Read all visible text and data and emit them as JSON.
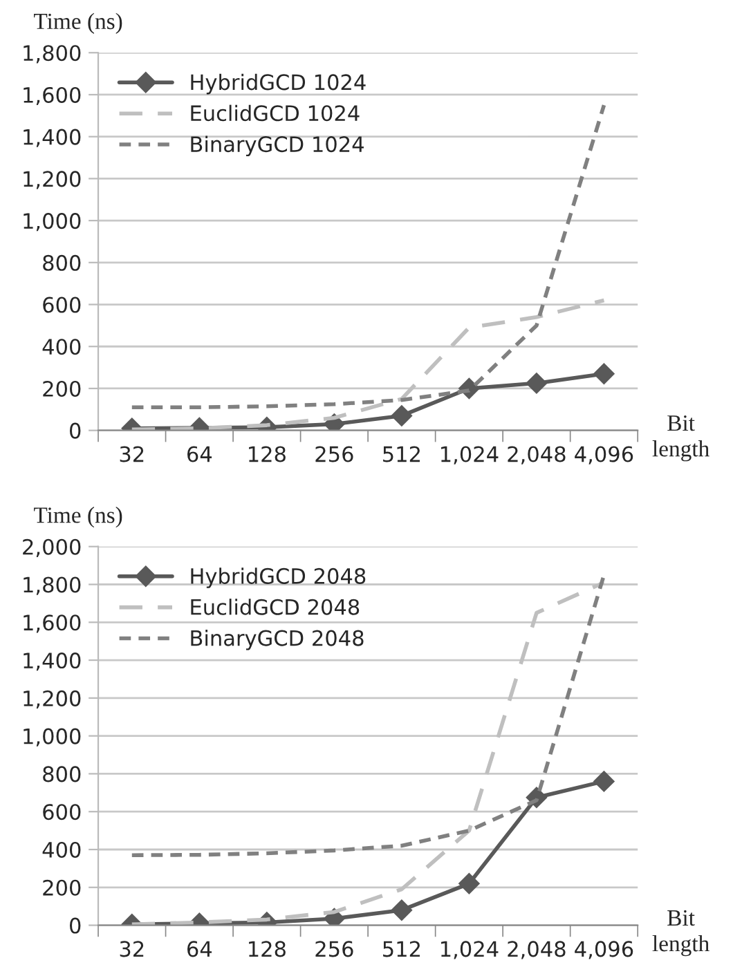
{
  "chart_data": [
    {
      "type": "line",
      "ylabel": "Time (ns)",
      "xlabel": "Bit\nlength",
      "categories": [
        "32",
        "64",
        "128",
        "256",
        "512",
        "1,024",
        "2,048",
        "4,096"
      ],
      "ylim": [
        0,
        1800
      ],
      "yticks": [
        {
          "value": 0,
          "label": "0"
        },
        {
          "value": 200,
          "label": "200"
        },
        {
          "value": 400,
          "label": "400"
        },
        {
          "value": 600,
          "label": "600"
        },
        {
          "value": 800,
          "label": "800"
        },
        {
          "value": 1000,
          "label": "1,000"
        },
        {
          "value": 1200,
          "label": "1,200"
        },
        {
          "value": 1400,
          "label": "1,400"
        },
        {
          "value": 1600,
          "label": "1,600"
        },
        {
          "value": 1800,
          "label": "1,800"
        }
      ],
      "grid": "y",
      "legend": "top left",
      "series": [
        {
          "name": "HybridGCD 1024",
          "color": "#595959",
          "marker": "diamond",
          "line_style": "solid",
          "values": [
            10,
            12,
            15,
            30,
            70,
            200,
            225,
            270
          ]
        },
        {
          "name": "EuclidGCD 1024",
          "color": "#bfbfbf",
          "line_style": "dashed",
          "values": [
            5,
            10,
            25,
            60,
            150,
            490,
            540,
            620
          ]
        },
        {
          "name": "BinaryGCD 1024",
          "color": "#808080",
          "line_style": "dotted",
          "values": [
            110,
            110,
            115,
            125,
            145,
            190,
            500,
            1550
          ]
        }
      ]
    },
    {
      "type": "line",
      "ylabel": "Time (ns)",
      "xlabel": "Bit\nlength",
      "categories": [
        "32",
        "64",
        "128",
        "256",
        "512",
        "1,024",
        "2,048",
        "4,096"
      ],
      "ylim": [
        0,
        2000
      ],
      "yticks": [
        {
          "value": 0,
          "label": "0"
        },
        {
          "value": 200,
          "label": "200"
        },
        {
          "value": 400,
          "label": "400"
        },
        {
          "value": 600,
          "label": "600"
        },
        {
          "value": 800,
          "label": "800"
        },
        {
          "value": 1000,
          "label": "1,000"
        },
        {
          "value": 1200,
          "label": "1,200"
        },
        {
          "value": 1400,
          "label": "1,400"
        },
        {
          "value": 1600,
          "label": "1,600"
        },
        {
          "value": 1800,
          "label": "1,800"
        },
        {
          "value": 2000,
          "label": "2,000"
        }
      ],
      "grid": "y",
      "legend": "top left",
      "series": [
        {
          "name": "HybridGCD 2048",
          "color": "#595959",
          "marker": "diamond",
          "line_style": "solid",
          "values": [
            5,
            10,
            15,
            35,
            80,
            220,
            675,
            760
          ]
        },
        {
          "name": "EuclidGCD 2048",
          "color": "#bfbfbf",
          "line_style": "dashed",
          "values": [
            5,
            15,
            30,
            70,
            190,
            500,
            1650,
            1810
          ]
        },
        {
          "name": "BinaryGCD 2048",
          "color": "#808080",
          "line_style": "dotted",
          "values": [
            370,
            372,
            380,
            395,
            420,
            500,
            660,
            1850
          ]
        }
      ]
    }
  ]
}
